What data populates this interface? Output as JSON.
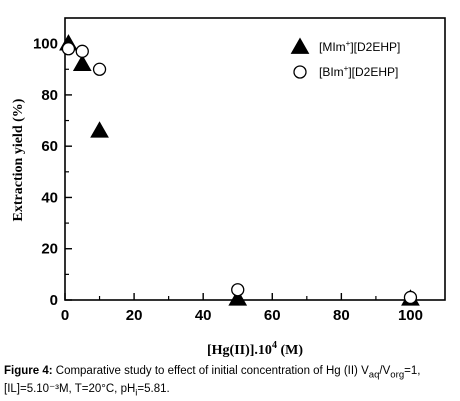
{
  "chart_data": {
    "type": "scatter",
    "title": "",
    "xlabel": {
      "main": "[Hg(II)].10",
      "sup": "4",
      "unit": " (M)"
    },
    "ylabel": "Extraction yield (%)",
    "xlim": [
      0,
      110
    ],
    "ylim": [
      0,
      110
    ],
    "x_ticks": [
      0,
      20,
      40,
      60,
      80,
      100
    ],
    "y_ticks": [
      0,
      20,
      40,
      60,
      80,
      100
    ],
    "legend_position": "top-right",
    "series": [
      {
        "name": {
          "base": "[MIm",
          "sup": "+",
          "rest": "][D2EHP]"
        },
        "marker": "filled-triangle",
        "x": [
          1,
          5,
          10,
          50,
          100
        ],
        "y": [
          100,
          92,
          66,
          0.5,
          0.5
        ]
      },
      {
        "name": {
          "base": "[BIm",
          "sup": "+",
          "rest": "][D2EHP]"
        },
        "marker": "open-circle",
        "x": [
          1,
          5,
          10,
          50,
          100
        ],
        "y": [
          98,
          97,
          90,
          4,
          1
        ]
      }
    ]
  },
  "caption": {
    "label": "Figure 4:",
    "text_1": " Comparative study to effect of initial concentration of Hg (II) V",
    "sub_aq": "aq",
    "text_2": "/V",
    "sub_org": "org",
    "text_3": "=1,",
    "line2": "[IL]=5.10⁻³M, T=20°C, pH",
    "sub_i": "i",
    "text_4": "=5.81."
  },
  "colors": {
    "ink": "#000000",
    "background": "#ffffff"
  }
}
